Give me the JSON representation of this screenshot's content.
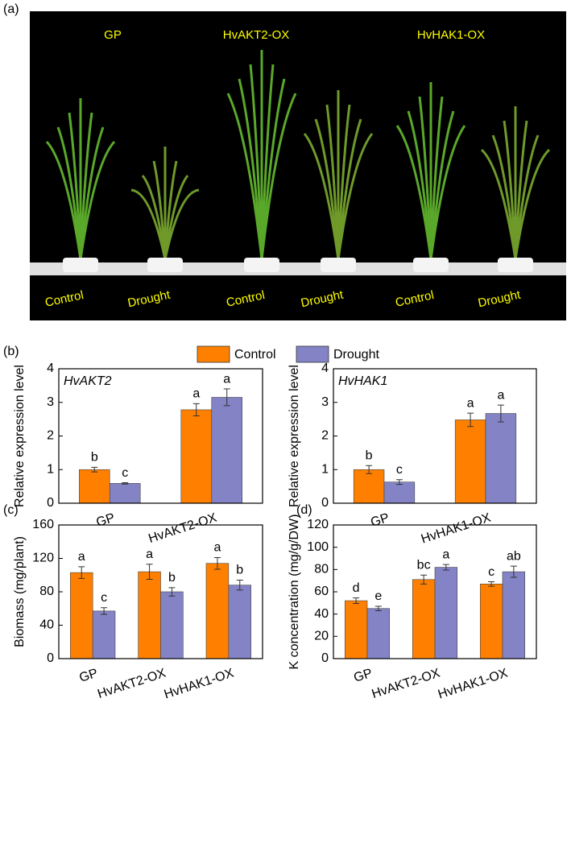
{
  "photo": {
    "label": "(a)",
    "genotypes": [
      "GP",
      "HvAKT2-OX",
      "HvHAK1-OX"
    ],
    "treatments": [
      "Control",
      "Drought",
      "Control",
      "Drought",
      "Control",
      "Drought"
    ]
  },
  "chart_data": [
    {
      "type": "bar",
      "panel": "(b)",
      "title": "HvAKT2",
      "y_label": "Relative expression level",
      "categories": [
        "GP",
        "HvAKT2-OX"
      ],
      "ylim": [
        0,
        4
      ],
      "yticks": [
        0,
        1,
        2,
        3,
        4
      ],
      "series": [
        {
          "name": "Control",
          "color": "#ff8000",
          "values": [
            1.0,
            2.78
          ],
          "errors": [
            0.07,
            0.18
          ],
          "letters": [
            "b",
            "a"
          ]
        },
        {
          "name": "Drought",
          "color": "#8383c6",
          "values": [
            0.59,
            3.15
          ],
          "errors": [
            0.02,
            0.25
          ],
          "letters": [
            "c",
            "a"
          ]
        }
      ]
    },
    {
      "type": "bar",
      "title": "HvHAK1",
      "y_label": "Relative expression level",
      "categories": [
        "GP",
        "HvHAK1-OX"
      ],
      "ylim": [
        0,
        4
      ],
      "yticks": [
        0,
        1,
        2,
        3,
        4
      ],
      "series": [
        {
          "color": "#ff8000",
          "values": [
            1.0,
            2.48
          ],
          "errors": [
            0.12,
            0.2
          ],
          "letters": [
            "b",
            "a"
          ]
        },
        {
          "color": "#8383c6",
          "values": [
            0.63,
            2.67
          ],
          "errors": [
            0.07,
            0.25
          ],
          "letters": [
            "c",
            "a"
          ]
        }
      ]
    },
    {
      "type": "bar",
      "panel": "(c)",
      "y_label": "Biomass (mg/plant)",
      "categories": [
        "GP",
        "HvAKT2-OX",
        "HvHAK1-OX"
      ],
      "ylim": [
        0,
        160
      ],
      "yticks": [
        0,
        40,
        80,
        120,
        160
      ],
      "series": [
        {
          "color": "#ff8000",
          "values": [
            103,
            104,
            114
          ],
          "errors": [
            7,
            9,
            7
          ],
          "letters": [
            "a",
            "a",
            "a"
          ]
        },
        {
          "color": "#8383c6",
          "values": [
            57,
            80,
            88
          ],
          "errors": [
            4,
            5,
            6
          ],
          "letters": [
            "c",
            "b",
            "b"
          ]
        }
      ]
    },
    {
      "type": "bar",
      "panel": "(d)",
      "y_label": "K concentration (mg/g/DW)",
      "categories": [
        "GP",
        "HvAKT2-OX",
        "HvHAK1-OX"
      ],
      "ylim": [
        0,
        120
      ],
      "yticks": [
        0,
        20,
        40,
        60,
        80,
        100,
        120
      ],
      "series": [
        {
          "color": "#ff8000",
          "values": [
            52,
            71,
            67
          ],
          "errors": [
            2.5,
            4,
            2
          ],
          "letters": [
            "d",
            "bc",
            "c"
          ]
        },
        {
          "color": "#8383c6",
          "values": [
            45,
            82,
            78
          ],
          "errors": [
            2,
            2.5,
            5
          ],
          "letters": [
            "e",
            "a",
            "ab"
          ]
        }
      ]
    }
  ]
}
